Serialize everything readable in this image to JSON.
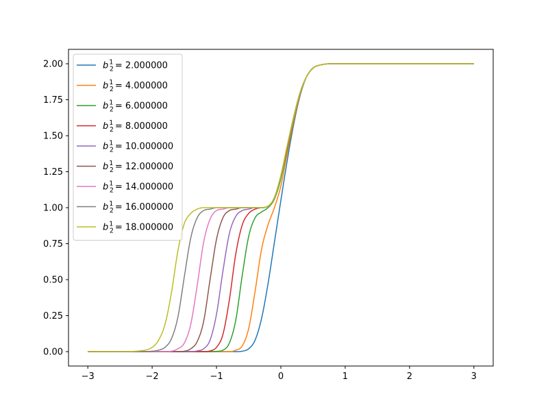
{
  "chart_data": {
    "type": "line",
    "title": "",
    "xlabel": "",
    "ylabel": "",
    "xlim": [
      -3.3,
      3.3
    ],
    "ylim": [
      -0.1,
      2.1
    ],
    "grid": false,
    "legend_position": "upper-left",
    "x_ticks": [
      -3,
      -2,
      -1,
      0,
      1,
      2,
      3
    ],
    "x_tick_labels": [
      "−3",
      "−2",
      "−1",
      "0",
      "1",
      "2",
      "3"
    ],
    "y_ticks": [
      0.0,
      0.25,
      0.5,
      0.75,
      1.0,
      1.25,
      1.5,
      1.75,
      2.0
    ],
    "y_tick_labels": [
      "0.00",
      "0.25",
      "0.50",
      "0.75",
      "1.00",
      "1.25",
      "1.50",
      "1.75",
      "2.00"
    ],
    "x": [
      -3.0,
      -2.5,
      -2.2,
      -2.0,
      -1.9,
      -1.8,
      -1.7,
      -1.6,
      -1.5,
      -1.4,
      -1.3,
      -1.2,
      -1.1,
      -1.0,
      -0.9,
      -0.8,
      -0.7,
      -0.6,
      -0.5,
      -0.4,
      -0.3,
      -0.2,
      -0.1,
      0.0,
      0.1,
      0.2,
      0.3,
      0.4,
      0.5,
      0.6,
      0.8,
      1.0,
      2.0,
      3.0
    ],
    "series": [
      {
        "name": "2.000000",
        "color": "#1f77b4",
        "values": [
          0.0,
          0.0,
          0.0,
          0.0,
          0.0,
          0.0,
          0.0,
          0.0,
          0.0,
          0.0,
          0.0,
          0.0,
          0.0,
          0.0,
          0.0,
          0.0,
          0.0,
          0.003,
          0.02,
          0.08,
          0.23,
          0.47,
          0.76,
          1.05,
          1.33,
          1.58,
          1.78,
          1.91,
          1.97,
          1.99,
          2.0,
          2.0,
          2.0,
          2.0
        ]
      },
      {
        "name": "4.000000",
        "color": "#ff7f0e",
        "values": [
          0.0,
          0.0,
          0.0,
          0.0,
          0.0,
          0.0,
          0.0,
          0.0,
          0.0,
          0.0,
          0.0,
          0.0,
          0.0,
          0.0,
          0.0,
          0.0,
          0.01,
          0.04,
          0.16,
          0.42,
          0.71,
          0.88,
          1.0,
          1.15,
          1.38,
          1.6,
          1.79,
          1.91,
          1.97,
          1.99,
          2.0,
          2.0,
          2.0,
          2.0
        ]
      },
      {
        "name": "6.000000",
        "color": "#2ca02c",
        "values": [
          0.0,
          0.0,
          0.0,
          0.0,
          0.0,
          0.0,
          0.0,
          0.0,
          0.0,
          0.0,
          0.0,
          0.0,
          0.0,
          0.002,
          0.01,
          0.06,
          0.22,
          0.53,
          0.8,
          0.93,
          0.97,
          1.0,
          1.06,
          1.2,
          1.41,
          1.62,
          1.8,
          1.91,
          1.97,
          1.99,
          2.0,
          2.0,
          2.0,
          2.0
        ]
      },
      {
        "name": "8.000000",
        "color": "#d62728",
        "values": [
          0.0,
          0.0,
          0.0,
          0.0,
          0.0,
          0.0,
          0.0,
          0.0,
          0.0,
          0.0,
          0.0,
          0.0,
          0.005,
          0.03,
          0.12,
          0.36,
          0.68,
          0.88,
          0.96,
          0.99,
          1.0,
          1.01,
          1.07,
          1.22,
          1.42,
          1.63,
          1.8,
          1.91,
          1.97,
          1.99,
          2.0,
          2.0,
          2.0,
          2.0
        ]
      },
      {
        "name": "10.000000",
        "color": "#9467bd",
        "values": [
          0.0,
          0.0,
          0.0,
          0.0,
          0.0,
          0.0,
          0.0,
          0.0,
          0.0,
          0.0,
          0.005,
          0.02,
          0.08,
          0.26,
          0.56,
          0.82,
          0.94,
          0.98,
          0.99,
          1.0,
          1.0,
          1.01,
          1.07,
          1.22,
          1.43,
          1.63,
          1.8,
          1.91,
          1.97,
          1.99,
          2.0,
          2.0,
          2.0,
          2.0
        ]
      },
      {
        "name": "12.000000",
        "color": "#8c564b",
        "values": [
          0.0,
          0.0,
          0.0,
          0.0,
          0.0,
          0.0,
          0.0,
          0.0,
          0.003,
          0.02,
          0.07,
          0.21,
          0.5,
          0.78,
          0.93,
          0.98,
          0.99,
          1.0,
          1.0,
          1.0,
          1.0,
          1.01,
          1.07,
          1.22,
          1.43,
          1.63,
          1.8,
          1.91,
          1.97,
          1.99,
          2.0,
          2.0,
          2.0,
          2.0
        ]
      },
      {
        "name": "14.000000",
        "color": "#e377c2",
        "values": [
          0.0,
          0.0,
          0.0,
          0.0,
          0.0,
          0.0,
          0.003,
          0.02,
          0.06,
          0.19,
          0.46,
          0.76,
          0.92,
          0.98,
          0.99,
          1.0,
          1.0,
          1.0,
          1.0,
          1.0,
          1.0,
          1.01,
          1.07,
          1.22,
          1.43,
          1.63,
          1.8,
          1.91,
          1.97,
          1.99,
          2.0,
          2.0,
          2.0,
          2.0
        ]
      },
      {
        "name": "16.000000",
        "color": "#7f7f7f",
        "values": [
          0.0,
          0.0,
          0.0,
          0.003,
          0.01,
          0.03,
          0.09,
          0.24,
          0.52,
          0.79,
          0.93,
          0.98,
          0.99,
          1.0,
          1.0,
          1.0,
          1.0,
          1.0,
          1.0,
          1.0,
          1.0,
          1.01,
          1.07,
          1.22,
          1.43,
          1.63,
          1.8,
          1.91,
          1.97,
          1.99,
          2.0,
          2.0,
          2.0,
          2.0
        ]
      },
      {
        "name": "18.000000",
        "color": "#bcbd22",
        "values": [
          0.0,
          0.0,
          0.005,
          0.03,
          0.08,
          0.19,
          0.41,
          0.7,
          0.89,
          0.96,
          0.99,
          1.0,
          1.0,
          1.0,
          1.0,
          1.0,
          1.0,
          1.0,
          1.0,
          1.0,
          1.0,
          1.01,
          1.07,
          1.22,
          1.43,
          1.63,
          1.8,
          1.91,
          1.97,
          1.99,
          2.0,
          2.0,
          2.0,
          2.0
        ]
      }
    ]
  }
}
